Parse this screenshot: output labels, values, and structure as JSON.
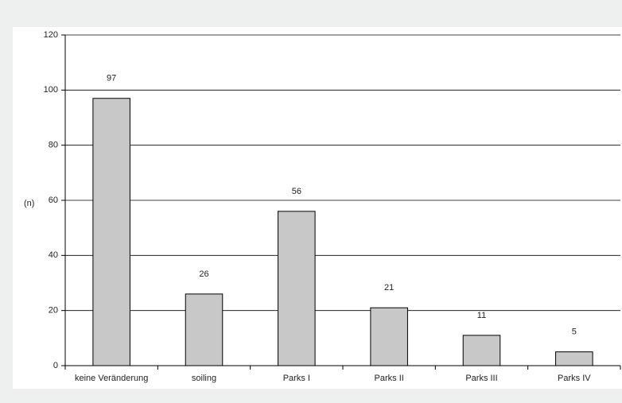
{
  "chart_data": {
    "type": "bar",
    "ylabel": "(n)",
    "ylim": [
      0,
      120
    ],
    "yticks": [
      0,
      20,
      40,
      60,
      80,
      100,
      120
    ],
    "categories": [
      "keine Veränderung",
      "soiling",
      "Parks I",
      "Parks II",
      "Parks III",
      "Parks IV"
    ],
    "values": [
      97,
      26,
      56,
      21,
      11,
      5
    ],
    "grid": true,
    "legend": "none",
    "colors": {
      "bar_fill": "#c8c8c8",
      "bar_stroke": "#000000",
      "grid": "#000000",
      "background": "#eef0f0",
      "plot_background": "#ffffff"
    }
  }
}
